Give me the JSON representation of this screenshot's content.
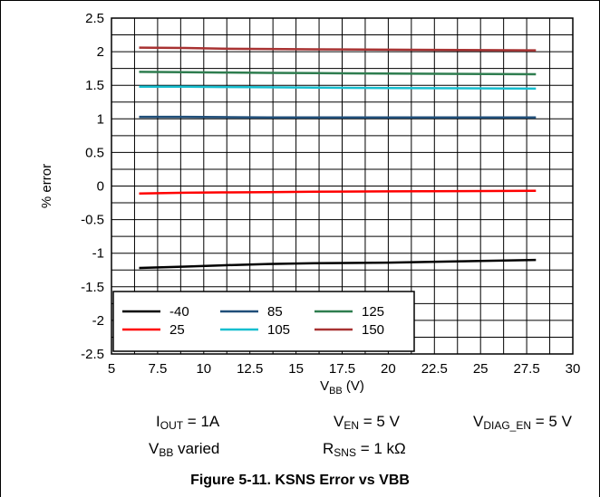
{
  "chart_data": {
    "type": "line",
    "xlabel": "V",
    "xlabel_sub": "BB",
    "xlabel_suffix": " (V)",
    "ylabel": "% error",
    "xlim": [
      5,
      30
    ],
    "ylim": [
      -2.5,
      2.5
    ],
    "x_major_ticks": [
      "5",
      "7.5",
      "10",
      "12.5",
      "15",
      "17.5",
      "20",
      "22.5",
      "25",
      "27.5",
      "30"
    ],
    "y_major_ticks": [
      "2.5",
      "2",
      "1.5",
      "1",
      "0.5",
      "0",
      "-0.5",
      "-1",
      "-1.5",
      "-2",
      "-2.5"
    ],
    "grid": true,
    "legend_position": "bottom-left",
    "series": [
      {
        "name": "-40",
        "color": "#000000",
        "x": [
          6.5,
          9,
          11,
          13.5,
          16,
          20,
          24,
          28
        ],
        "y": [
          -1.22,
          -1.2,
          -1.18,
          -1.16,
          -1.15,
          -1.14,
          -1.12,
          -1.1
        ]
      },
      {
        "name": "25",
        "color": "#ff0000",
        "x": [
          6.5,
          9,
          11,
          13.5,
          16,
          20,
          24,
          28
        ],
        "y": [
          -0.11,
          -0.1,
          -0.095,
          -0.09,
          -0.085,
          -0.08,
          -0.075,
          -0.07
        ]
      },
      {
        "name": "85",
        "color": "#1f4e79",
        "x": [
          6.5,
          9,
          11,
          13.5,
          16,
          20,
          24,
          28
        ],
        "y": [
          1.03,
          1.03,
          1.025,
          1.02,
          1.02,
          1.02,
          1.02,
          1.02
        ]
      },
      {
        "name": "105",
        "color": "#17becf",
        "x": [
          6.5,
          9,
          11,
          13.5,
          16,
          20,
          24,
          28
        ],
        "y": [
          1.48,
          1.48,
          1.475,
          1.47,
          1.465,
          1.46,
          1.455,
          1.45
        ]
      },
      {
        "name": "125",
        "color": "#2e7d4f",
        "x": [
          6.5,
          9,
          11,
          13.5,
          16,
          20,
          24,
          28
        ],
        "y": [
          1.7,
          1.695,
          1.69,
          1.685,
          1.68,
          1.675,
          1.67,
          1.665
        ]
      },
      {
        "name": "150",
        "color": "#a83232",
        "x": [
          6.5,
          9,
          11,
          13.5,
          16,
          20,
          24,
          28
        ],
        "y": [
          2.06,
          2.055,
          2.045,
          2.04,
          2.035,
          2.03,
          2.025,
          2.02
        ]
      }
    ]
  },
  "conditions": {
    "iout": {
      "main": "I",
      "sub": "OUT",
      "rest": " = 1A"
    },
    "ven": {
      "main": "V",
      "sub": "EN",
      "rest": " = 5 V"
    },
    "vdiag": {
      "main": "V",
      "sub": "DIAG_EN",
      "rest": " = 5 V"
    },
    "vbb": {
      "main": "V",
      "sub": "BB",
      "rest": " varied"
    },
    "rsns": {
      "main": "R",
      "sub": "SNS",
      "rest": " = 1 kΩ"
    }
  },
  "caption": "Figure 5-11. KSNS Error vs VBB"
}
